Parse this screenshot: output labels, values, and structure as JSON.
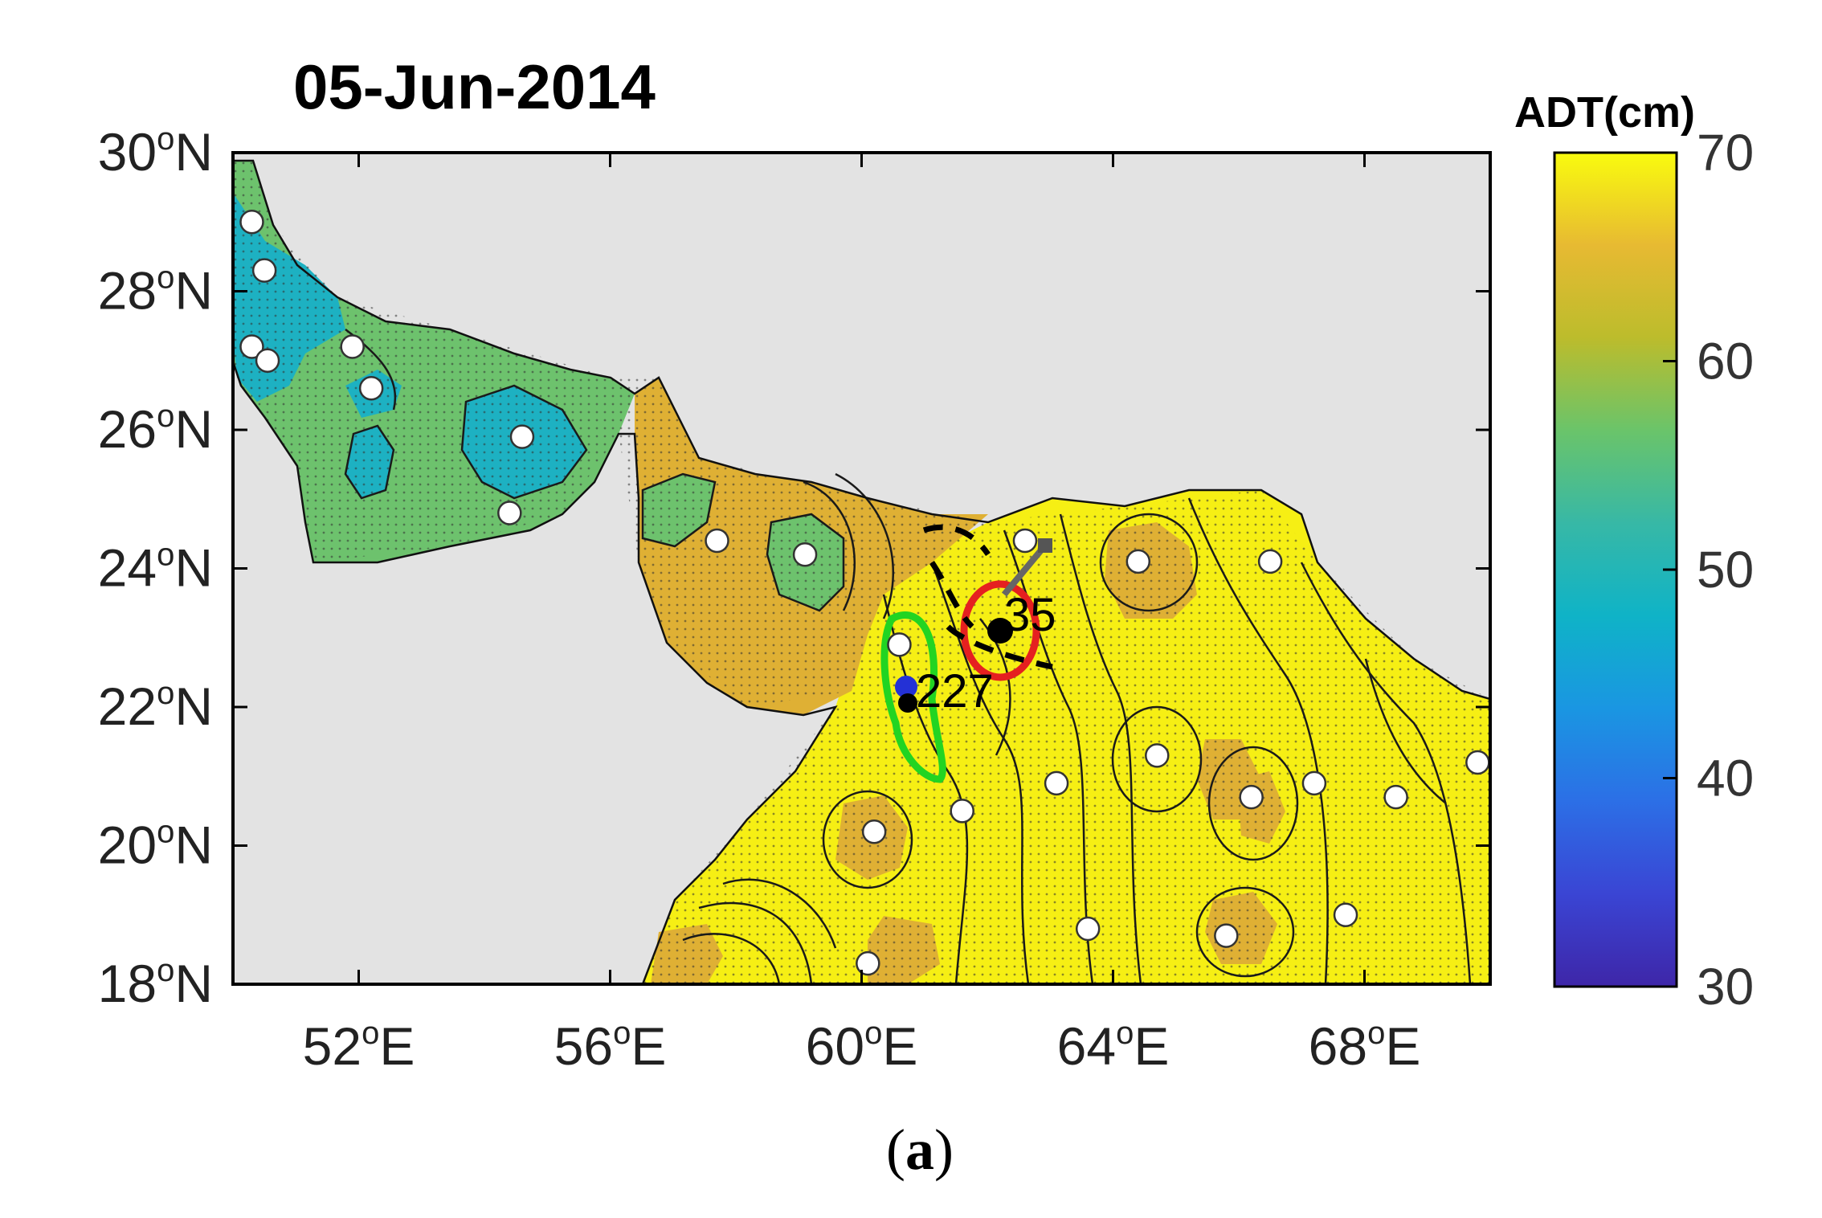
{
  "title": "05-Jun-2014",
  "caption": {
    "open": "(",
    "letter": "a",
    "close": ")"
  },
  "colorbar": {
    "title": "ADT(cm)",
    "min": 30,
    "max": 70,
    "ticks": [
      "70",
      "60",
      "50",
      "40",
      "30"
    ],
    "colors": [
      "#f9fb0e",
      "#e7ba32",
      "#bcbc2c",
      "#6ac46a",
      "#37b8a6",
      "#0fb3c7",
      "#1a96e2",
      "#2c6fe6",
      "#3a45d4",
      "#3e26a8"
    ]
  },
  "axes": {
    "lon_range": [
      50,
      70
    ],
    "lat_range": [
      18,
      30
    ],
    "x_ticks": [
      {
        "lon": 52,
        "deg": "52",
        "sup": "o",
        "hemi": "E"
      },
      {
        "lon": 56,
        "deg": "56",
        "sup": "o",
        "hemi": "E"
      },
      {
        "lon": 60,
        "deg": "60",
        "sup": "o",
        "hemi": "E"
      },
      {
        "lon": 64,
        "deg": "64",
        "sup": "o",
        "hemi": "E"
      },
      {
        "lon": 68,
        "deg": "68",
        "sup": "o",
        "hemi": "E"
      }
    ],
    "y_ticks": [
      {
        "lat": 30,
        "deg": "30",
        "sup": "o",
        "hemi": "N"
      },
      {
        "lat": 28,
        "deg": "28",
        "sup": "o",
        "hemi": "N"
      },
      {
        "lat": 26,
        "deg": "26",
        "sup": "o",
        "hemi": "N"
      },
      {
        "lat": 24,
        "deg": "24",
        "sup": "o",
        "hemi": "N"
      },
      {
        "lat": 22,
        "deg": "22",
        "sup": "o",
        "hemi": "N"
      },
      {
        "lat": 20,
        "deg": "20",
        "sup": "o",
        "hemi": "N"
      },
      {
        "lat": 18,
        "deg": "18",
        "sup": "o",
        "hemi": "N"
      }
    ]
  },
  "colors": {
    "land": "#e3e3e3",
    "gulf_green": "#6dc26d",
    "gulf_cyan": "#1db1c2",
    "sea_yellow": "#f6ef14",
    "sea_gold": "#dfb034",
    "anticyclonic_eddy": "#e52020",
    "cyclonic_eddy": "#22d422",
    "track": "#000000"
  },
  "eddies": [
    {
      "id": "35",
      "type": "anticyclonic",
      "center_lon": 61.9,
      "center_lat": 23.2,
      "label": "35"
    },
    {
      "id": "227",
      "type": "cyclonic",
      "center_lon": 60.6,
      "center_lat": 22.1,
      "label": "227"
    }
  ],
  "floats": [
    [
      50.3,
      29.0
    ],
    [
      50.5,
      28.3
    ],
    [
      50.3,
      27.2
    ],
    [
      50.55,
      27.0
    ],
    [
      51.9,
      27.2
    ],
    [
      52.2,
      26.6
    ],
    [
      54.6,
      25.9
    ],
    [
      54.4,
      24.8
    ],
    [
      57.7,
      24.4
    ],
    [
      59.1,
      24.2
    ],
    [
      60.6,
      22.9
    ],
    [
      61.6,
      20.5
    ],
    [
      62.6,
      24.4
    ],
    [
      64.4,
      24.1
    ],
    [
      66.5,
      24.1
    ],
    [
      60.2,
      20.2
    ],
    [
      63.1,
      20.9
    ],
    [
      64.7,
      21.3
    ],
    [
      66.2,
      20.7
    ],
    [
      67.2,
      20.9
    ],
    [
      68.5,
      20.7
    ],
    [
      69.8,
      21.2
    ],
    [
      63.6,
      18.8
    ],
    [
      65.8,
      18.7
    ],
    [
      67.7,
      19.0
    ],
    [
      60.1,
      18.3
    ]
  ]
}
